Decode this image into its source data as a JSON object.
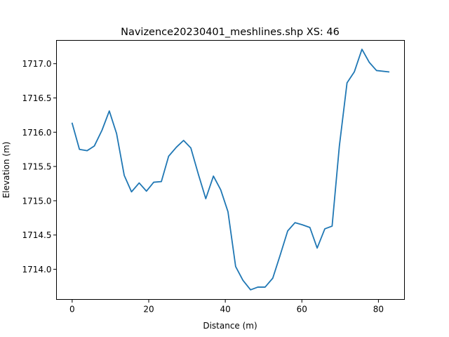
{
  "chart_data": {
    "type": "line",
    "title": "Navizence20230401_meshlines.shp XS: 46",
    "xlabel": "Distance (m)",
    "ylabel": "Elevation (m)",
    "xlim": [
      -4.1,
      86.8
    ],
    "ylim": [
      1713.56,
      1717.34
    ],
    "xticks": [
      0,
      20,
      40,
      60,
      80
    ],
    "xtick_labels": [
      "0",
      "20",
      "40",
      "60",
      "80"
    ],
    "yticks": [
      1714.0,
      1714.5,
      1715.0,
      1715.5,
      1716.0,
      1716.5,
      1717.0
    ],
    "ytick_labels": [
      "1714.0",
      "1714.5",
      "1715.0",
      "1715.5",
      "1716.0",
      "1716.5",
      "1717.0"
    ],
    "grid": false,
    "series": [
      {
        "color": "#1f77b4",
        "x": [
          0.0,
          1.9,
          3.9,
          5.8,
          7.8,
          9.7,
          11.6,
          13.6,
          15.5,
          17.5,
          19.4,
          21.3,
          23.3,
          25.2,
          27.2,
          29.1,
          31.0,
          33.0,
          34.9,
          36.9,
          38.8,
          40.7,
          42.7,
          44.6,
          46.6,
          48.5,
          50.4,
          52.4,
          54.3,
          56.3,
          58.2,
          60.1,
          62.1,
          64.0,
          66.0,
          67.9,
          69.8,
          71.8,
          73.7,
          75.7,
          77.6,
          79.5,
          82.7
        ],
        "y": [
          1716.13,
          1715.75,
          1715.73,
          1715.8,
          1716.03,
          1716.31,
          1715.98,
          1715.37,
          1715.13,
          1715.26,
          1715.14,
          1715.27,
          1715.28,
          1715.65,
          1715.78,
          1715.88,
          1715.77,
          1715.38,
          1715.03,
          1715.36,
          1715.16,
          1714.84,
          1714.04,
          1713.84,
          1713.7,
          1713.74,
          1713.74,
          1713.87,
          1714.2,
          1714.56,
          1714.68,
          1714.65,
          1714.61,
          1714.31,
          1714.59,
          1714.63,
          1715.8,
          1716.72,
          1716.88,
          1717.21,
          1717.02,
          1716.9,
          1716.88
        ]
      }
    ]
  }
}
